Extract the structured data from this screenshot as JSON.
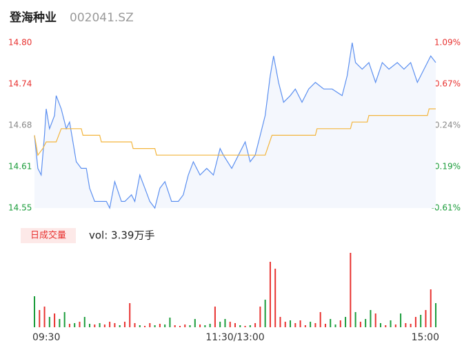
{
  "chart_data": [
    {
      "type": "line",
      "title": "登海种业",
      "subtitle": "002041.SZ",
      "xlim": [
        0,
        240
      ],
      "ylim": [
        14.55,
        14.8
      ],
      "yticks": [
        14.55,
        {
          "value": 14.6125,
          "label": "14.61"
        },
        {
          "value": 14.675,
          "label": "14.68"
        },
        {
          "value": 14.7375,
          "label": "14.74"
        },
        {
          "value": 14.8,
          "label": "14.80"
        }
      ],
      "y2lim": [
        -0.61,
        1.09
      ],
      "y2ticks": [
        {
          "value": -0.61,
          "label": "-0.61%"
        },
        {
          "value": -0.185,
          "label": "-0.19%"
        },
        {
          "value": 0.24,
          "label": "0.24%"
        },
        {
          "value": 0.665,
          "label": "0.67%"
        },
        {
          "value": 1.09,
          "label": "1.09%"
        }
      ],
      "tick_colors": [
        "#1a9c3a",
        "#1a9c3a",
        "#888888",
        "#e8312f",
        "#e8312f"
      ],
      "series": [
        {
          "color": "#5b8ff0",
          "fill": "#f4f7fd",
          "x": [
            0,
            2,
            4,
            6,
            7,
            9,
            12,
            13,
            16,
            19,
            21,
            23,
            25,
            28,
            31,
            33,
            36,
            39,
            43,
            45,
            48,
            52,
            54,
            58,
            60,
            63,
            66,
            69,
            72,
            75,
            78,
            82,
            86,
            89,
            92,
            95,
            99,
            103,
            107,
            111,
            113,
            118,
            122,
            126,
            129,
            132,
            135,
            138,
            141,
            143,
            146,
            149,
            153,
            156,
            160,
            164,
            168,
            173,
            178,
            184,
            187,
            190,
            192,
            196,
            200,
            204,
            208,
            212,
            217,
            221,
            225,
            229,
            233,
            237,
            240
          ],
          "values": [
            14.66,
            14.61,
            14.6,
            14.66,
            14.7,
            14.67,
            14.69,
            14.72,
            14.7,
            14.67,
            14.68,
            14.65,
            14.62,
            14.61,
            14.61,
            14.58,
            14.56,
            14.56,
            14.56,
            14.55,
            14.59,
            14.56,
            14.56,
            14.57,
            14.56,
            14.6,
            14.58,
            14.56,
            14.55,
            14.58,
            14.59,
            14.56,
            14.56,
            14.57,
            14.6,
            14.62,
            14.6,
            14.61,
            14.6,
            14.64,
            14.63,
            14.61,
            14.63,
            14.65,
            14.62,
            14.63,
            14.66,
            14.69,
            14.75,
            14.78,
            14.74,
            14.71,
            14.72,
            14.73,
            14.71,
            14.73,
            14.74,
            14.73,
            14.73,
            14.72,
            14.75,
            14.8,
            14.77,
            14.76,
            14.77,
            14.74,
            14.77,
            14.76,
            14.77,
            14.76,
            14.77,
            14.74,
            14.76,
            14.78,
            14.77
          ]
        },
        {
          "color": "#f3b53c",
          "x": [
            0,
            2,
            5,
            7,
            13,
            16,
            28,
            29,
            39,
            40,
            58,
            59,
            72,
            73,
            138,
            142,
            168,
            169,
            189,
            190,
            199,
            200,
            235,
            236,
            240
          ],
          "values": [
            14.66,
            14.63,
            14.64,
            14.65,
            14.65,
            14.67,
            14.67,
            14.66,
            14.66,
            14.65,
            14.65,
            14.64,
            14.64,
            14.63,
            14.63,
            14.66,
            14.66,
            14.67,
            14.67,
            14.68,
            14.68,
            14.69,
            14.69,
            14.7,
            14.7
          ]
        }
      ]
    },
    {
      "type": "bar",
      "badge": "日成交量",
      "title": "vol: 3.39万手",
      "xlim": [
        0,
        240
      ],
      "xticks": [
        {
          "value": 0,
          "label": "09:30"
        },
        {
          "value": 120,
          "label": "11:30/13:00"
        },
        {
          "value": 240,
          "label": "15:00"
        }
      ],
      "x": [
        0,
        3,
        6,
        9,
        12,
        15,
        18,
        21,
        24,
        27,
        30,
        33,
        36,
        39,
        42,
        45,
        48,
        51,
        54,
        57,
        60,
        63,
        66,
        69,
        72,
        75,
        78,
        81,
        84,
        87,
        90,
        93,
        96,
        99,
        102,
        105,
        108,
        111,
        114,
        117,
        120,
        123,
        126,
        129,
        132,
        135,
        138,
        141,
        144,
        147,
        150,
        153,
        156,
        159,
        162,
        165,
        168,
        171,
        174,
        177,
        180,
        183,
        186,
        189,
        192,
        195,
        198,
        201,
        204,
        207,
        210,
        213,
        216,
        219,
        222,
        225,
        228,
        231,
        234,
        237,
        240
      ],
      "values": [
        45,
        25,
        30,
        15,
        20,
        12,
        22,
        5,
        6,
        8,
        15,
        5,
        4,
        6,
        4,
        8,
        6,
        3,
        8,
        35,
        6,
        3,
        2,
        6,
        3,
        5,
        4,
        14,
        3,
        2,
        4,
        3,
        12,
        4,
        3,
        5,
        30,
        8,
        12,
        8,
        6,
        3,
        2,
        3,
        6,
        30,
        40,
        95,
        85,
        15,
        8,
        10,
        6,
        10,
        3,
        8,
        6,
        22,
        5,
        12,
        4,
        10,
        15,
        108,
        22,
        8,
        12,
        25,
        20,
        6,
        3,
        10,
        4,
        20,
        6,
        5,
        15,
        18,
        25,
        55,
        35
      ],
      "colors": [
        "#1a9c3a",
        "#e8312f",
        "#e8312f",
        "#1a9c3a",
        "#e8312f",
        "#1a9c3a",
        "#1a9c3a",
        "#e8312f",
        "#1a9c3a",
        "#e8312f",
        "#1a9c3a",
        "#1a9c3a",
        "#e8312f",
        "#1a9c3a",
        "#e8312f",
        "#e8312f",
        "#e8312f",
        "#1a9c3a",
        "#e8312f",
        "#e8312f",
        "#e8312f",
        "#1a9c3a",
        "#e8312f",
        "#e8312f",
        "#1a9c3a",
        "#e8312f",
        "#1a9c3a",
        "#1a9c3a",
        "#e8312f",
        "#e8312f",
        "#e8312f",
        "#1a9c3a",
        "#1a9c3a",
        "#e8312f",
        "#1a9c3a",
        "#1a9c3a",
        "#e8312f",
        "#1a9c3a",
        "#1a9c3a",
        "#e8312f",
        "#e8312f",
        "#1a9c3a",
        "#e8312f",
        "#1a9c3a",
        "#e8312f",
        "#e8312f",
        "#1a9c3a",
        "#e8312f",
        "#e8312f",
        "#e8312f",
        "#e8312f",
        "#1a9c3a",
        "#e8312f",
        "#e8312f",
        "#e8312f",
        "#1a9c3a",
        "#e8312f",
        "#e8312f",
        "#e8312f",
        "#1a9c3a",
        "#1a9c3a",
        "#e8312f",
        "#1a9c3a",
        "#e8312f",
        "#1a9c3a",
        "#e8312f",
        "#1a9c3a",
        "#1a9c3a",
        "#e8312f",
        "#1a9c3a",
        "#e8312f",
        "#1a9c3a",
        "#e8312f",
        "#1a9c3a",
        "#e8312f",
        "#e8312f",
        "#e8312f",
        "#1a9c3a",
        "#e8312f",
        "#e8312f",
        "#1a9c3a"
      ]
    }
  ]
}
